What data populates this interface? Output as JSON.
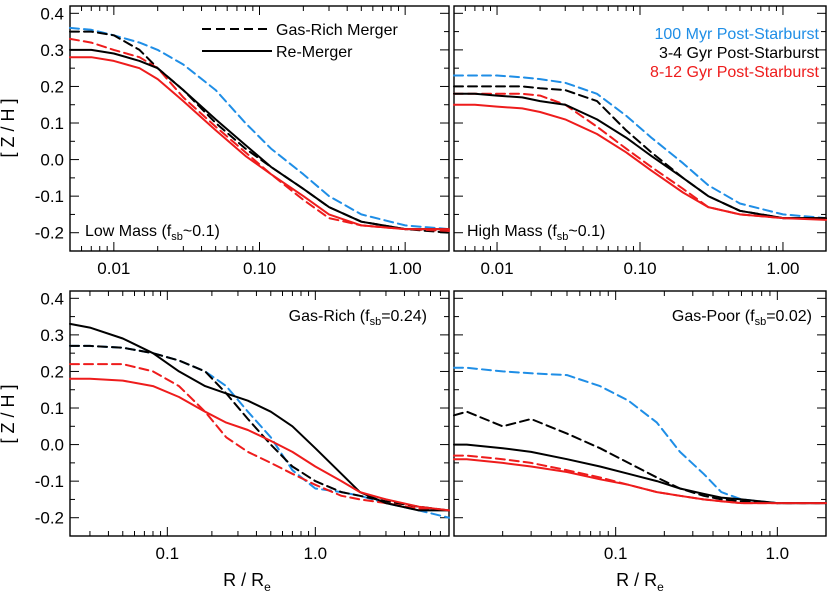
{
  "figure": {
    "ylabel": "[ Z / H ]",
    "xlabel_main": "R / R",
    "xlabel_sub": "e"
  },
  "legend": {
    "line_styles": [
      {
        "label": "Gas-Rich Merger",
        "style": "dashed"
      },
      {
        "label": "Re-Merger",
        "style": "solid"
      }
    ],
    "ages": [
      {
        "label": "100 Myr Post-Starburst",
        "color": "#1f8ee6"
      },
      {
        "label": "3-4  Gyr Post-Starburst",
        "color": "#000000"
      },
      {
        "label": "8-12 Gyr Post-Starburst",
        "color": "#ee1c1c"
      }
    ]
  },
  "chart_data": [
    {
      "type": "line",
      "panel": "top-left",
      "annotation": {
        "pre": "Low Mass (f",
        "sub": "sb",
        "post": "~0.1)"
      },
      "xscale": "log",
      "xlim": [
        0.005,
        2.0
      ],
      "ylim": [
        -0.25,
        0.42
      ],
      "xticks": [
        "0.01",
        "0.10",
        "1.00"
      ],
      "xtick_values": [
        0.01,
        0.1,
        1.0
      ],
      "yticks": [
        "0.4",
        "0.3",
        "0.2",
        "0.1",
        "0.0",
        "-0.1",
        "-0.2"
      ],
      "ytick_values": [
        0.4,
        0.3,
        0.2,
        0.1,
        0.0,
        -0.1,
        -0.2
      ],
      "series": [
        {
          "color": "#1f8ee6",
          "style": "dashed",
          "x": [
            0.005,
            0.007,
            0.01,
            0.015,
            0.02,
            0.03,
            0.05,
            0.08,
            0.12,
            0.2,
            0.3,
            0.5,
            1.0,
            2.0
          ],
          "y": [
            0.36,
            0.355,
            0.34,
            0.32,
            0.3,
            0.26,
            0.19,
            0.1,
            0.03,
            -0.04,
            -0.1,
            -0.15,
            -0.18,
            -0.19
          ]
        },
        {
          "color": "#000000",
          "style": "dashed",
          "x": [
            0.005,
            0.007,
            0.01,
            0.015,
            0.02,
            0.03,
            0.05,
            0.08,
            0.12,
            0.2,
            0.3,
            0.5,
            1.0,
            2.0
          ],
          "y": [
            0.35,
            0.35,
            0.34,
            0.3,
            0.25,
            0.19,
            0.1,
            0.03,
            -0.02,
            -0.08,
            -0.13,
            -0.17,
            -0.19,
            -0.2
          ]
        },
        {
          "color": "#ee1c1c",
          "style": "dashed",
          "x": [
            0.005,
            0.007,
            0.01,
            0.015,
            0.02,
            0.03,
            0.05,
            0.08,
            0.12,
            0.2,
            0.3,
            0.5,
            1.0,
            2.0
          ],
          "y": [
            0.33,
            0.32,
            0.3,
            0.28,
            0.25,
            0.17,
            0.09,
            0.02,
            -0.04,
            -0.11,
            -0.16,
            -0.18,
            -0.19,
            -0.195
          ]
        },
        {
          "color": "#000000",
          "style": "solid",
          "x": [
            0.005,
            0.007,
            0.01,
            0.015,
            0.02,
            0.03,
            0.05,
            0.08,
            0.12,
            0.2,
            0.3,
            0.5,
            1.0,
            2.0
          ],
          "y": [
            0.3,
            0.3,
            0.29,
            0.27,
            0.25,
            0.19,
            0.11,
            0.04,
            -0.02,
            -0.08,
            -0.13,
            -0.17,
            -0.19,
            -0.19
          ]
        },
        {
          "color": "#ee1c1c",
          "style": "solid",
          "x": [
            0.005,
            0.007,
            0.01,
            0.015,
            0.02,
            0.03,
            0.05,
            0.08,
            0.12,
            0.2,
            0.3,
            0.5,
            1.0,
            2.0
          ],
          "y": [
            0.28,
            0.28,
            0.27,
            0.25,
            0.22,
            0.16,
            0.08,
            0.01,
            -0.04,
            -0.1,
            -0.15,
            -0.18,
            -0.19,
            -0.19
          ]
        }
      ]
    },
    {
      "type": "line",
      "panel": "top-right",
      "annotation": {
        "pre": "High Mass (f",
        "sub": "sb",
        "post": "~0.1)"
      },
      "xscale": "log",
      "xlim": [
        0.005,
        2.0
      ],
      "ylim": [
        -0.25,
        0.42
      ],
      "xticks": [
        "0.01",
        "0.10",
        "1.00"
      ],
      "xtick_values": [
        0.01,
        0.1,
        1.0
      ],
      "series": [
        {
          "color": "#1f8ee6",
          "style": "dashed",
          "x": [
            0.005,
            0.007,
            0.01,
            0.015,
            0.02,
            0.03,
            0.05,
            0.08,
            0.12,
            0.2,
            0.3,
            0.5,
            1.0,
            2.0
          ],
          "y": [
            0.23,
            0.23,
            0.23,
            0.225,
            0.22,
            0.21,
            0.18,
            0.12,
            0.06,
            -0.01,
            -0.07,
            -0.12,
            -0.15,
            -0.16
          ]
        },
        {
          "color": "#000000",
          "style": "dashed",
          "x": [
            0.005,
            0.007,
            0.01,
            0.015,
            0.02,
            0.03,
            0.05,
            0.08,
            0.12,
            0.2,
            0.3,
            0.5,
            1.0,
            2.0
          ],
          "y": [
            0.2,
            0.2,
            0.2,
            0.2,
            0.195,
            0.19,
            0.16,
            0.08,
            0.02,
            -0.05,
            -0.1,
            -0.14,
            -0.16,
            -0.16
          ]
        },
        {
          "color": "#ee1c1c",
          "style": "dashed",
          "x": [
            0.005,
            0.007,
            0.01,
            0.015,
            0.02,
            0.03,
            0.05,
            0.08,
            0.12,
            0.2,
            0.3,
            0.5,
            1.0,
            2.0
          ],
          "y": [
            0.18,
            0.18,
            0.18,
            0.18,
            0.175,
            0.15,
            0.09,
            0.03,
            -0.02,
            -0.08,
            -0.13,
            -0.15,
            -0.16,
            -0.16
          ]
        },
        {
          "color": "#000000",
          "style": "solid",
          "x": [
            0.005,
            0.007,
            0.01,
            0.015,
            0.02,
            0.03,
            0.05,
            0.08,
            0.12,
            0.2,
            0.3,
            0.5,
            1.0,
            2.0
          ],
          "y": [
            0.18,
            0.18,
            0.175,
            0.17,
            0.16,
            0.15,
            0.11,
            0.06,
            0.01,
            -0.05,
            -0.1,
            -0.14,
            -0.16,
            -0.16
          ]
        },
        {
          "color": "#ee1c1c",
          "style": "solid",
          "x": [
            0.005,
            0.007,
            0.01,
            0.015,
            0.02,
            0.03,
            0.05,
            0.08,
            0.12,
            0.2,
            0.3,
            0.5,
            1.0,
            2.0
          ],
          "y": [
            0.15,
            0.15,
            0.145,
            0.14,
            0.13,
            0.11,
            0.07,
            0.02,
            -0.03,
            -0.09,
            -0.13,
            -0.15,
            -0.16,
            -0.165
          ]
        }
      ]
    },
    {
      "type": "line",
      "panel": "bottom-left",
      "annotation": {
        "pre": "Gas-Rich (f",
        "sub": "sb",
        "post": "=0.24)"
      },
      "xscale": "log",
      "xlim": [
        0.022,
        8.0
      ],
      "ylim": [
        -0.25,
        0.42
      ],
      "xticks": [
        "0.1",
        "1.0"
      ],
      "xtick_values": [
        0.1,
        1.0
      ],
      "yticks": [
        "0.4",
        "0.3",
        "0.2",
        "0.1",
        "0.0",
        "-0.1",
        "-0.2"
      ],
      "ytick_values": [
        0.4,
        0.3,
        0.2,
        0.1,
        0.0,
        -0.1,
        -0.2
      ],
      "series": [
        {
          "color": "#1f8ee6",
          "style": "dashed",
          "x": [
            0.022,
            0.03,
            0.05,
            0.08,
            0.12,
            0.18,
            0.25,
            0.35,
            0.5,
            0.7,
            1.0,
            1.5,
            2.0,
            3.0,
            5.0,
            8.0
          ],
          "y": [
            0.27,
            0.27,
            0.265,
            0.25,
            0.23,
            0.2,
            0.16,
            0.09,
            0.02,
            -0.07,
            -0.12,
            -0.13,
            -0.14,
            -0.16,
            -0.18,
            -0.2
          ]
        },
        {
          "color": "#000000",
          "style": "dashed",
          "x": [
            0.022,
            0.03,
            0.05,
            0.08,
            0.12,
            0.18,
            0.25,
            0.35,
            0.5,
            0.7,
            1.0,
            1.5,
            2.0,
            3.0,
            5.0,
            8.0
          ],
          "y": [
            0.27,
            0.27,
            0.265,
            0.25,
            0.23,
            0.2,
            0.14,
            0.07,
            0.0,
            -0.06,
            -0.1,
            -0.13,
            -0.14,
            -0.155,
            -0.17,
            -0.18
          ]
        },
        {
          "color": "#ee1c1c",
          "style": "dashed",
          "x": [
            0.022,
            0.03,
            0.05,
            0.08,
            0.12,
            0.18,
            0.25,
            0.35,
            0.5,
            0.7,
            1.0,
            1.5,
            2.0,
            3.0,
            5.0,
            8.0
          ],
          "y": [
            0.22,
            0.22,
            0.22,
            0.2,
            0.16,
            0.09,
            0.02,
            -0.02,
            -0.05,
            -0.08,
            -0.11,
            -0.14,
            -0.15,
            -0.16,
            -0.175,
            -0.18
          ]
        },
        {
          "color": "#000000",
          "style": "solid",
          "x": [
            0.022,
            0.03,
            0.05,
            0.08,
            0.12,
            0.18,
            0.25,
            0.35,
            0.5,
            0.7,
            1.0,
            1.5,
            2.0,
            3.0,
            5.0,
            8.0
          ],
          "y": [
            0.33,
            0.32,
            0.29,
            0.25,
            0.2,
            0.16,
            0.14,
            0.12,
            0.09,
            0.05,
            -0.01,
            -0.08,
            -0.13,
            -0.16,
            -0.18,
            -0.18
          ]
        },
        {
          "color": "#ee1c1c",
          "style": "solid",
          "x": [
            0.022,
            0.03,
            0.05,
            0.08,
            0.12,
            0.18,
            0.25,
            0.35,
            0.5,
            0.7,
            1.0,
            1.5,
            2.0,
            3.0,
            5.0,
            8.0
          ],
          "y": [
            0.18,
            0.18,
            0.175,
            0.16,
            0.13,
            0.09,
            0.06,
            0.04,
            0.01,
            -0.02,
            -0.06,
            -0.1,
            -0.13,
            -0.15,
            -0.17,
            -0.18
          ]
        }
      ]
    },
    {
      "type": "line",
      "panel": "bottom-right",
      "annotation": {
        "pre": "Gas-Poor (f",
        "sub": "sb",
        "post": "=0.02)"
      },
      "xscale": "log",
      "xlim": [
        0.01,
        2.0
      ],
      "ylim": [
        -0.25,
        0.42
      ],
      "xticks": [
        "0.1",
        "1.0"
      ],
      "xtick_values": [
        0.1,
        1.0
      ],
      "series": [
        {
          "color": "#1f8ee6",
          "style": "dashed",
          "x": [
            0.01,
            0.012,
            0.02,
            0.03,
            0.05,
            0.08,
            0.12,
            0.18,
            0.25,
            0.35,
            0.45,
            0.6,
            1.0,
            2.0
          ],
          "y": [
            0.21,
            0.21,
            0.2,
            0.195,
            0.19,
            0.16,
            0.12,
            0.06,
            -0.02,
            -0.08,
            -0.13,
            -0.15,
            -0.16,
            -0.16
          ]
        },
        {
          "color": "#000000",
          "style": "dashed",
          "x": [
            0.01,
            0.012,
            0.02,
            0.03,
            0.05,
            0.08,
            0.12,
            0.18,
            0.25,
            0.35,
            0.45,
            0.6,
            1.0,
            2.0
          ],
          "y": [
            0.08,
            0.09,
            0.05,
            0.07,
            0.03,
            -0.01,
            -0.05,
            -0.09,
            -0.12,
            -0.14,
            -0.15,
            -0.155,
            -0.16,
            -0.16
          ]
        },
        {
          "color": "#ee1c1c",
          "style": "dashed",
          "x": [
            0.01,
            0.012,
            0.02,
            0.03,
            0.05,
            0.08,
            0.12,
            0.18,
            0.25,
            0.35,
            0.45,
            0.6,
            1.0,
            2.0
          ],
          "y": [
            -0.03,
            -0.03,
            -0.04,
            -0.05,
            -0.07,
            -0.09,
            -0.11,
            -0.13,
            -0.14,
            -0.15,
            -0.155,
            -0.16,
            -0.16,
            -0.16
          ]
        },
        {
          "color": "#000000",
          "style": "solid",
          "x": [
            0.01,
            0.012,
            0.02,
            0.03,
            0.05,
            0.08,
            0.12,
            0.18,
            0.25,
            0.35,
            0.45,
            0.6,
            1.0,
            2.0
          ],
          "y": [
            0.0,
            0.0,
            -0.01,
            -0.02,
            -0.04,
            -0.06,
            -0.08,
            -0.1,
            -0.12,
            -0.135,
            -0.145,
            -0.15,
            -0.16,
            -0.16
          ]
        },
        {
          "color": "#ee1c1c",
          "style": "solid",
          "x": [
            0.01,
            0.012,
            0.02,
            0.03,
            0.05,
            0.08,
            0.12,
            0.18,
            0.25,
            0.35,
            0.45,
            0.6,
            1.0,
            2.0
          ],
          "y": [
            -0.04,
            -0.04,
            -0.05,
            -0.06,
            -0.075,
            -0.095,
            -0.11,
            -0.13,
            -0.14,
            -0.15,
            -0.155,
            -0.16,
            -0.16,
            -0.16
          ]
        }
      ]
    }
  ]
}
